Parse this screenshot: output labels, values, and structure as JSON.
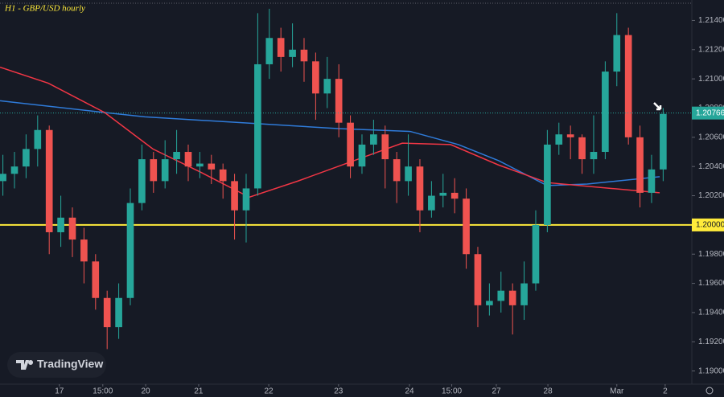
{
  "chart_data": {
    "type": "candlestick",
    "title": "H1 - GBP/USD hourly",
    "watermark": "TradingView",
    "up_color": "#26a69a",
    "down_color": "#ef5350",
    "grid": false,
    "xlim": [
      0,
      238.9
    ],
    "ylim": [
      1.1891,
      1.2154
    ],
    "xticks": [
      {
        "value": 20.5,
        "label": "17"
      },
      {
        "value": 35.5,
        "label": "15:00"
      },
      {
        "value": 50.3,
        "label": "20"
      },
      {
        "value": 68.6,
        "label": "21"
      },
      {
        "value": 92.8,
        "label": "22"
      },
      {
        "value": 116.9,
        "label": "23"
      },
      {
        "value": 141.4,
        "label": "24"
      },
      {
        "value": 156,
        "label": "15:00"
      },
      {
        "value": 171.4,
        "label": "27"
      },
      {
        "value": 189.2,
        "label": "28"
      },
      {
        "value": 213,
        "label": "Mar"
      },
      {
        "value": 229.7,
        "label": "2"
      }
    ],
    "yticks": [
      {
        "value": 1.214,
        "label": "1.21400"
      },
      {
        "value": 1.212,
        "label": "1.21200"
      },
      {
        "value": 1.21,
        "label": "1.21000"
      },
      {
        "value": 1.208,
        "label": "1.20800"
      },
      {
        "value": 1.206,
        "label": "1.20600"
      },
      {
        "value": 1.204,
        "label": "1.20400"
      },
      {
        "value": 1.202,
        "label": "1.20200"
      },
      {
        "value": 1.198,
        "label": "1.19800"
      },
      {
        "value": 1.196,
        "label": "1.19600"
      },
      {
        "value": 1.194,
        "label": "1.19400"
      },
      {
        "value": 1.192,
        "label": "1.19200"
      },
      {
        "value": 1.19,
        "label": "1.19000"
      }
    ],
    "level": {
      "value": 1.2,
      "label": "1.20000",
      "color": "#ffeb3b"
    },
    "last_price": {
      "value": 1.20766,
      "label": "1.20766"
    },
    "candles": {
      "x": [
        1,
        5,
        9,
        13,
        17,
        21,
        25,
        29,
        33,
        37,
        41,
        45,
        49,
        53,
        57,
        61,
        65,
        69,
        73,
        77,
        81,
        85,
        89,
        93,
        97,
        101,
        105,
        109,
        113,
        117,
        121,
        125,
        129,
        133,
        137,
        141,
        145,
        149,
        153,
        157,
        161,
        165,
        169,
        173,
        177,
        181,
        185,
        189,
        193,
        197,
        201,
        205,
        209,
        213,
        217,
        221,
        225,
        229
      ],
      "open": [
        1.203,
        1.2035,
        1.204,
        1.2052,
        1.2065,
        1.1995,
        1.2005,
        1.199,
        1.1975,
        1.195,
        1.193,
        1.195,
        1.2015,
        1.2045,
        1.203,
        1.2045,
        1.205,
        1.204,
        1.2042,
        1.2038,
        1.203,
        1.201,
        1.2025,
        1.211,
        1.2128,
        1.2115,
        1.212,
        1.2112,
        1.209,
        1.21,
        1.207,
        1.204,
        1.2055,
        1.2062,
        1.2045,
        1.203,
        1.204,
        1.201,
        1.202,
        1.2022,
        1.2018,
        1.198,
        1.1945,
        1.1948,
        1.1955,
        1.1945,
        1.196,
        1.2,
        1.2055,
        1.2062,
        1.206,
        1.2045,
        1.205,
        1.2105,
        1.213,
        1.206,
        1.2022,
        1.2038
      ],
      "high": [
        1.2048,
        1.205,
        1.2062,
        1.2075,
        1.2068,
        1.202,
        1.2012,
        1.1998,
        1.198,
        1.1955,
        1.196,
        1.2025,
        1.2055,
        1.205,
        1.2058,
        1.2065,
        1.2055,
        1.205,
        1.2048,
        1.2042,
        1.2035,
        1.2035,
        1.2145,
        1.2148,
        1.2135,
        1.2138,
        1.2128,
        1.2118,
        1.2115,
        1.211,
        1.2075,
        1.2062,
        1.2072,
        1.2068,
        1.205,
        1.2062,
        1.2045,
        1.203,
        1.2035,
        1.2032,
        1.2025,
        1.1985,
        1.196,
        1.1968,
        1.196,
        1.1975,
        1.201,
        1.2065,
        1.207,
        1.2068,
        1.2062,
        1.2075,
        1.2112,
        1.2145,
        1.2135,
        1.2068,
        1.2048,
        1.208
      ],
      "low": [
        1.202,
        1.2025,
        1.2032,
        1.204,
        1.198,
        1.1985,
        1.1978,
        1.196,
        1.1942,
        1.1915,
        1.1922,
        1.1945,
        1.201,
        1.2022,
        1.2025,
        1.2035,
        1.203,
        1.2032,
        1.2028,
        1.2018,
        1.199,
        1.1988,
        1.202,
        1.21,
        1.2105,
        1.2108,
        1.2098,
        1.2072,
        1.208,
        1.206,
        1.2032,
        1.2035,
        1.2048,
        1.2025,
        1.2015,
        1.202,
        1.1995,
        1.2005,
        1.2012,
        1.2008,
        1.197,
        1.193,
        1.1938,
        1.194,
        1.1925,
        1.1935,
        1.1955,
        1.1995,
        1.2048,
        1.2045,
        1.2035,
        1.2035,
        1.2045,
        1.2095,
        1.2055,
        1.2012,
        1.2015,
        1.203
      ],
      "close": [
        1.2035,
        1.204,
        1.2052,
        1.2065,
        1.1995,
        1.2005,
        1.199,
        1.1975,
        1.195,
        1.193,
        1.195,
        1.2015,
        1.2045,
        1.203,
        1.2045,
        1.205,
        1.204,
        1.2042,
        1.2038,
        1.203,
        1.201,
        1.2025,
        1.211,
        1.2128,
        1.2115,
        1.212,
        1.2112,
        1.209,
        1.21,
        1.207,
        1.204,
        1.2055,
        1.2062,
        1.2045,
        1.203,
        1.204,
        1.201,
        1.202,
        1.2022,
        1.2018,
        1.198,
        1.1945,
        1.1948,
        1.1955,
        1.1945,
        1.196,
        1.2,
        1.2055,
        1.2062,
        1.206,
        1.2045,
        1.205,
        1.2105,
        1.213,
        1.206,
        1.2022,
        1.2038,
        1.2076
      ]
    },
    "lines": [
      {
        "color": "#2f7bd9",
        "x": [
          0,
          36.1,
          50,
          83.3,
          116.7,
          141.7,
          158.3,
          172.2,
          188.9,
          202.8,
          227.8
        ],
        "values": [
          1.2085,
          1.2077,
          1.2074,
          1.207,
          1.2066,
          1.2064,
          1.2055,
          1.2044,
          1.2027,
          1.2028,
          1.2033
        ]
      },
      {
        "color": "#f23645",
        "x": [
          0,
          16.7,
          36.1,
          52.8,
          69.4,
          86.1,
          102.8,
          122.2,
          138.9,
          155.6,
          172.2,
          188.9,
          211.1,
          227.8
        ],
        "values": [
          1.2108,
          1.2097,
          1.2077,
          1.2052,
          1.2036,
          1.2019,
          1.203,
          1.2044,
          1.2056,
          1.2055,
          1.2041,
          1.2029,
          1.2025,
          1.2022
        ]
      }
    ]
  }
}
